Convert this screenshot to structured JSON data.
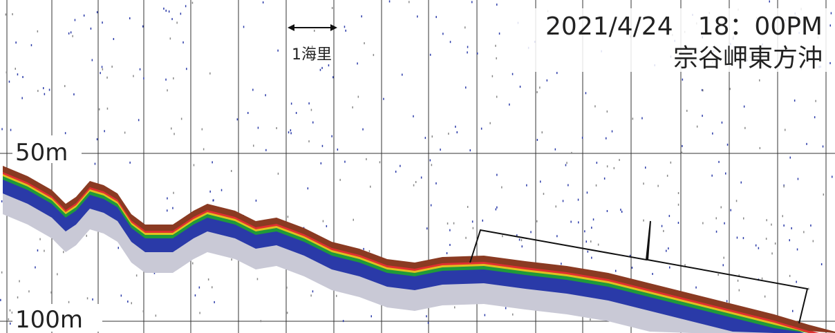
{
  "header": {
    "datetime": "2021/4/24　18：00PM",
    "location": "宗谷岬東方沖"
  },
  "scale": {
    "distance": "1海里"
  },
  "depth_labels": [
    "50m",
    "100m"
  ]
}
